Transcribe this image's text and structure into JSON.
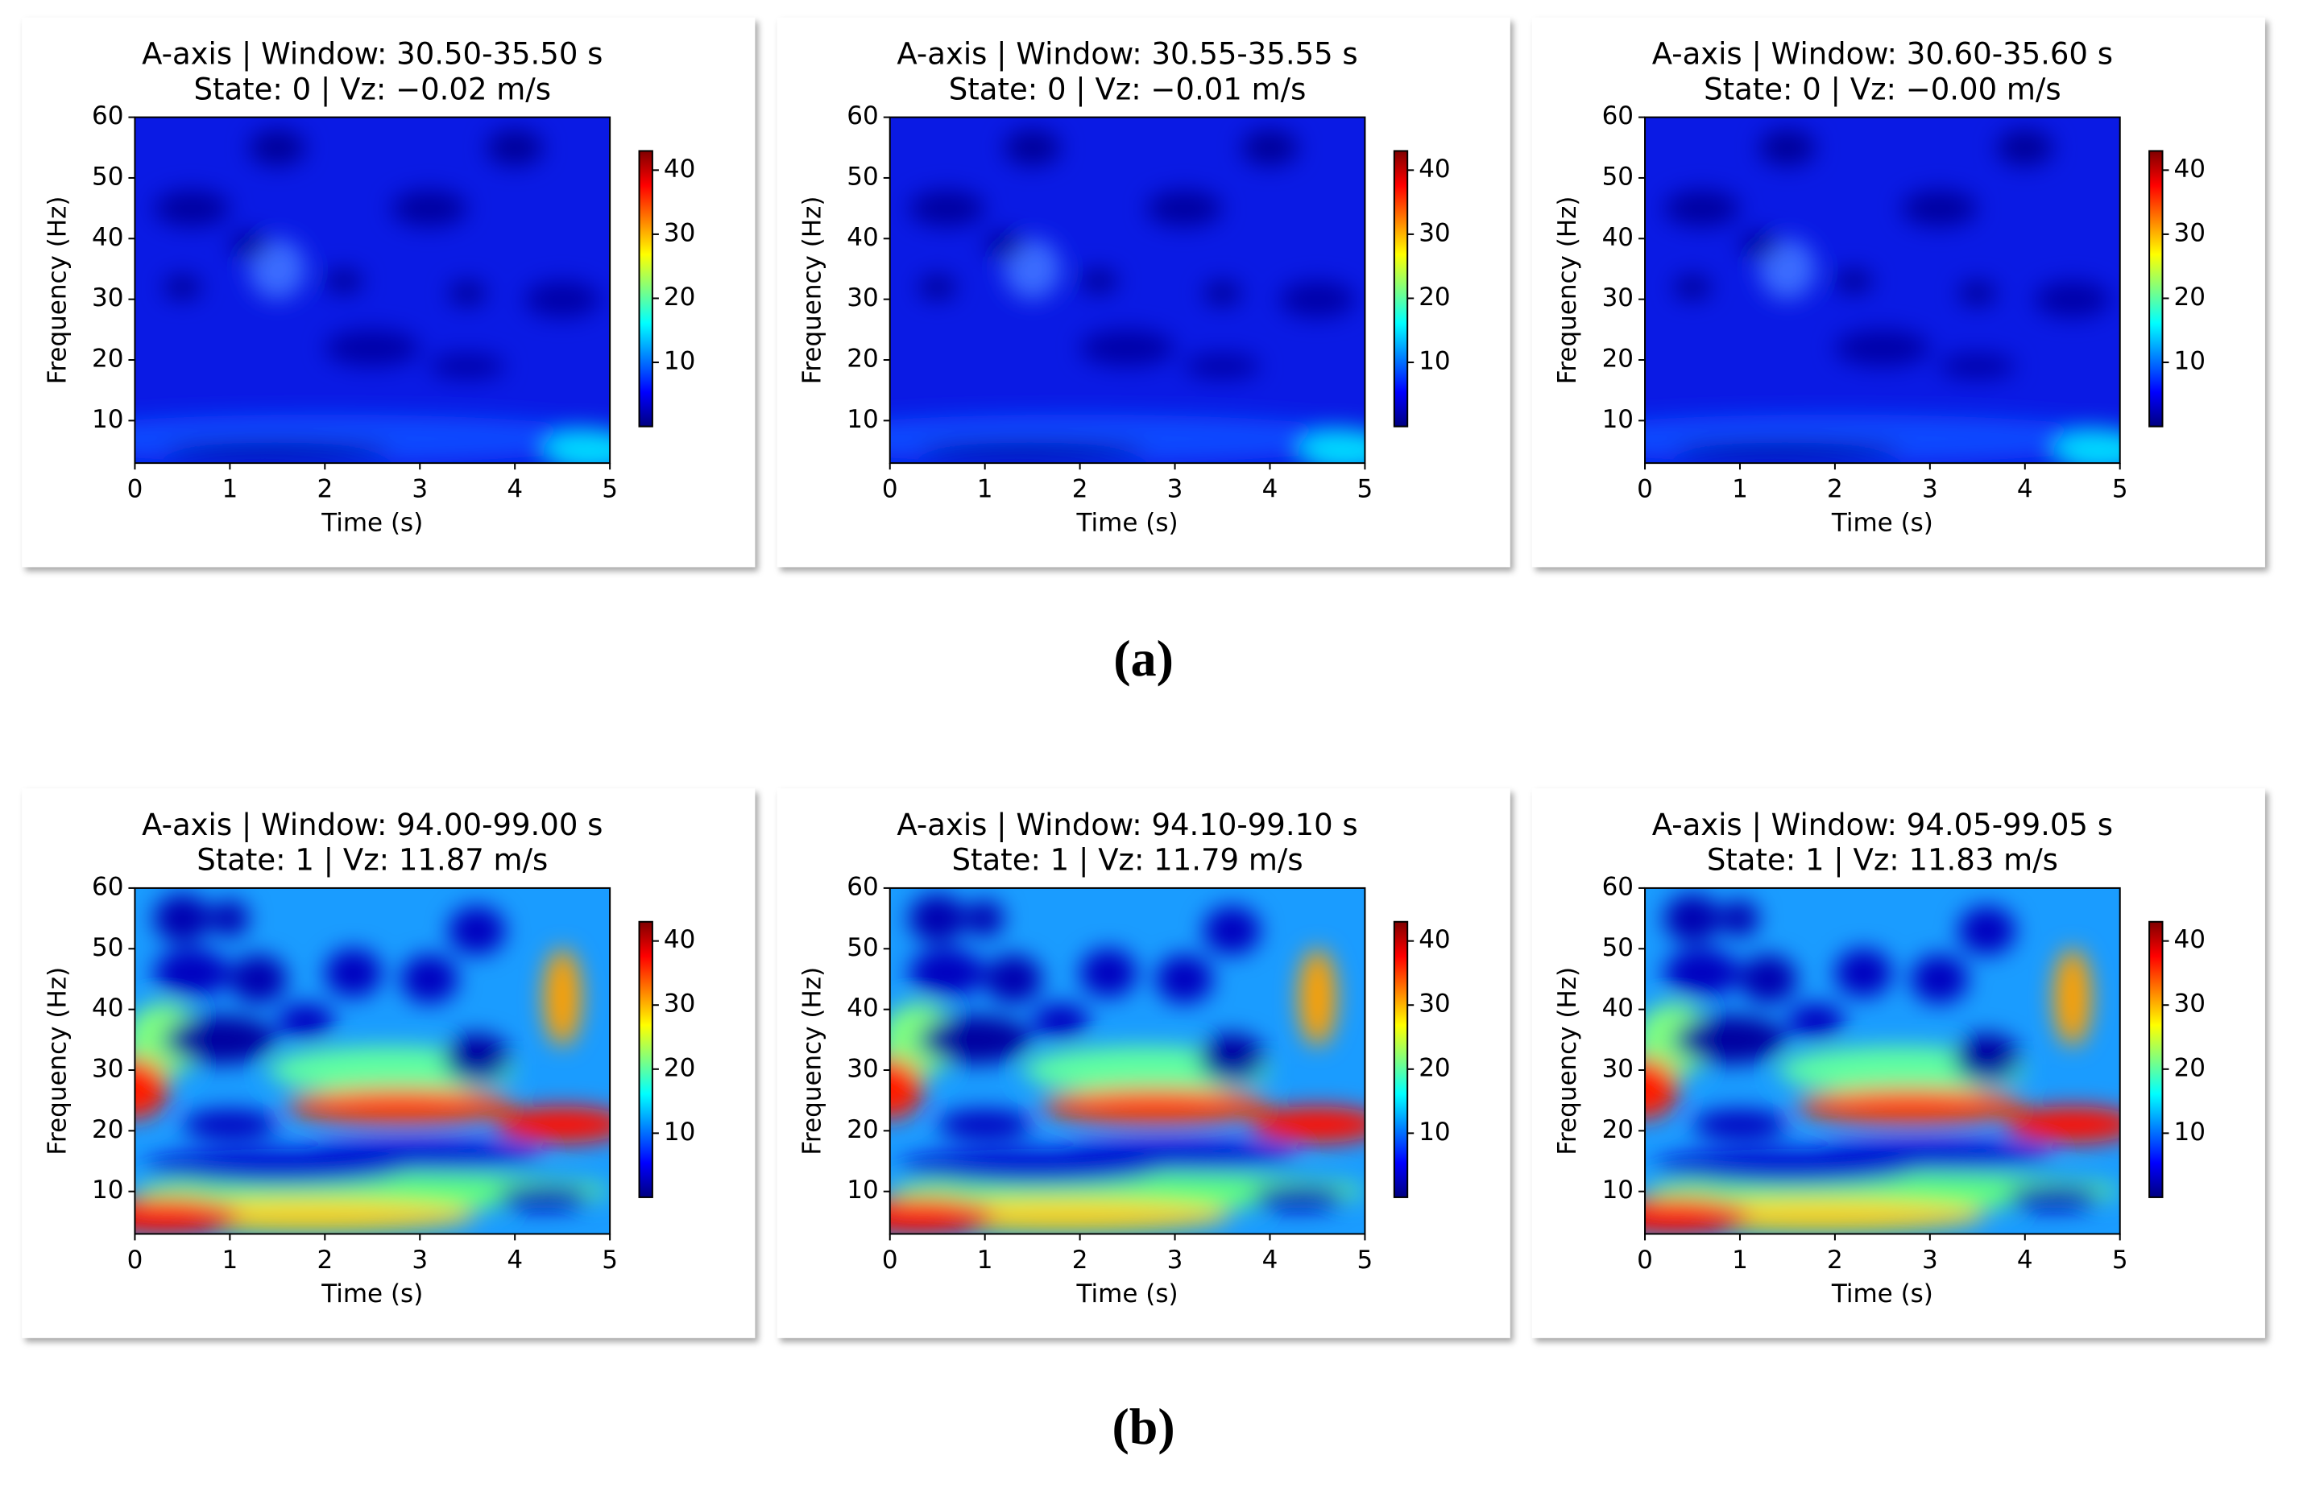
{
  "chart_data": [
    {
      "type": "heatmap",
      "title": "A-axis | Window: 30.50-35.50 s",
      "subtitle": "State: 0 | Vz: −0.02 m/s",
      "xlabel": "Time (s)",
      "ylabel": "Frequency (Hz)",
      "xlim": [
        0,
        5
      ],
      "xticks": [
        0,
        1,
        2,
        3,
        4,
        5
      ],
      "ylim": [
        3,
        60
      ],
      "yticks": [
        10,
        20,
        30,
        40,
        50,
        60
      ],
      "colormap": "jet",
      "clim": [
        0,
        43
      ],
      "cticks": [
        10,
        20,
        30,
        40
      ]
    },
    {
      "type": "heatmap",
      "title": "A-axis | Window: 30.55-35.55 s",
      "subtitle": "State: 0 | Vz: −0.01 m/s",
      "xlabel": "Time (s)",
      "ylabel": "Frequency (Hz)",
      "xlim": [
        0,
        5
      ],
      "xticks": [
        0,
        1,
        2,
        3,
        4,
        5
      ],
      "ylim": [
        3,
        60
      ],
      "yticks": [
        10,
        20,
        30,
        40,
        50,
        60
      ],
      "colormap": "jet",
      "clim": [
        0,
        43
      ],
      "cticks": [
        10,
        20,
        30,
        40
      ]
    },
    {
      "type": "heatmap",
      "title": "A-axis | Window: 30.60-35.60 s",
      "subtitle": "State: 0 | Vz: −0.00 m/s",
      "xlabel": "Time (s)",
      "ylabel": "Frequency (Hz)",
      "xlim": [
        0,
        5
      ],
      "xticks": [
        0,
        1,
        2,
        3,
        4,
        5
      ],
      "ylim": [
        3,
        60
      ],
      "yticks": [
        10,
        20,
        30,
        40,
        50,
        60
      ],
      "colormap": "jet",
      "clim": [
        0,
        43
      ],
      "cticks": [
        10,
        20,
        30,
        40
      ]
    },
    {
      "type": "heatmap",
      "title": "A-axis | Window: 94.00-99.00 s",
      "subtitle": "State: 1 | Vz: 11.87 m/s",
      "xlabel": "Time (s)",
      "ylabel": "Frequency (Hz)",
      "xlim": [
        0,
        5
      ],
      "xticks": [
        0,
        1,
        2,
        3,
        4,
        5
      ],
      "ylim": [
        3,
        60
      ],
      "yticks": [
        10,
        20,
        30,
        40,
        50,
        60
      ],
      "colormap": "jet",
      "clim": [
        0,
        43
      ],
      "cticks": [
        10,
        20,
        30,
        40
      ]
    },
    {
      "type": "heatmap",
      "title": "A-axis | Window: 94.10-99.10 s",
      "subtitle": "State: 1 | Vz: 11.79 m/s",
      "xlabel": "Time (s)",
      "ylabel": "Frequency (Hz)",
      "xlim": [
        0,
        5
      ],
      "xticks": [
        0,
        1,
        2,
        3,
        4,
        5
      ],
      "ylim": [
        3,
        60
      ],
      "yticks": [
        10,
        20,
        30,
        40,
        50,
        60
      ],
      "colormap": "jet",
      "clim": [
        0,
        43
      ],
      "cticks": [
        10,
        20,
        30,
        40
      ]
    },
    {
      "type": "heatmap",
      "title": "A-axis | Window: 94.05-99.05 s",
      "subtitle": "State: 1 | Vz: 11.83 m/s",
      "xlabel": "Time (s)",
      "ylabel": "Frequency (Hz)",
      "xlim": [
        0,
        5
      ],
      "xticks": [
        0,
        1,
        2,
        3,
        4,
        5
      ],
      "ylim": [
        3,
        60
      ],
      "yticks": [
        10,
        20,
        30,
        40,
        50,
        60
      ],
      "colormap": "jet",
      "clim": [
        0,
        43
      ],
      "cticks": [
        10,
        20,
        30,
        40
      ]
    }
  ],
  "panel_labels": [
    "(a)",
    "(b)"
  ]
}
